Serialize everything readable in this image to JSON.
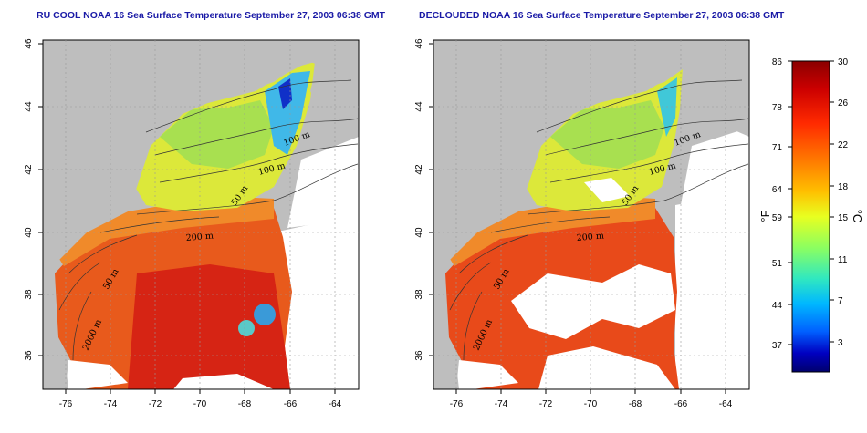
{
  "panels": [
    {
      "title": "RU COOL NOAA 16 Sea Surface Temperature September 27, 2003 06:38 GMT",
      "x_ticks": [
        "-76",
        "-74",
        "-72",
        "-70",
        "-68",
        "-66",
        "-64"
      ],
      "y_ticks": [
        "36",
        "38",
        "40",
        "42",
        "44",
        "46"
      ],
      "contour_labels": [
        "100 m",
        "100 m",
        "50 m",
        "200 m",
        "50 m",
        "2000 m"
      ]
    },
    {
      "title": "DECLOUDED NOAA 16 Sea Surface Temperature September 27, 2003 06:38 GMT",
      "x_ticks": [
        "-76",
        "-74",
        "-72",
        "-70",
        "-68",
        "-66",
        "-64"
      ],
      "y_ticks": [
        "36",
        "38",
        "40",
        "42",
        "44",
        "46"
      ],
      "contour_labels": [
        "100 m",
        "100 m",
        "50 m",
        "200 m",
        "50 m",
        "2000 m"
      ]
    }
  ],
  "colorbar": {
    "fahrenheit_ticks": [
      "86",
      "78",
      "71",
      "64",
      "59",
      "51",
      "44",
      "37"
    ],
    "celsius_ticks": [
      "30",
      "26",
      "22",
      "18",
      "15",
      "11",
      "7",
      "3"
    ],
    "fahrenheit_unit": "°F",
    "celsius_unit": "°C",
    "colors": [
      "#8b0000",
      "#cc0000",
      "#ff2a00",
      "#ff7a00",
      "#ffc000",
      "#e8ff20",
      "#8cff60",
      "#30e8c0",
      "#00b8ff",
      "#0060ff",
      "#0000c0",
      "#00006e"
    ]
  },
  "colors": {
    "land": "#bebebe",
    "title": "#1a1aa6",
    "warm_water": "#e03a1a",
    "cool_water": "#b8e040"
  }
}
